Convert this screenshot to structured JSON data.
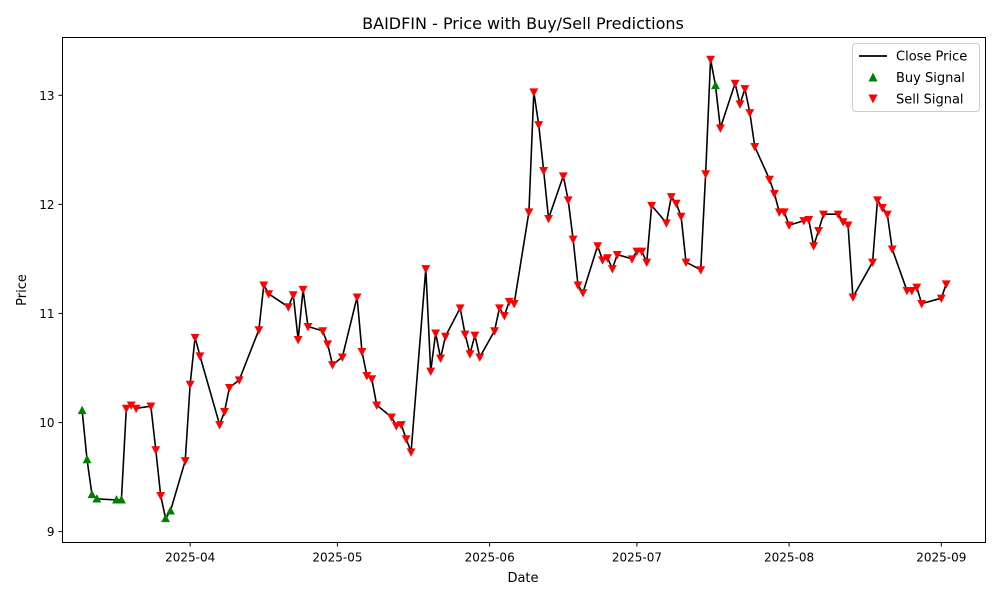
{
  "chart_data": {
    "type": "line",
    "title": "BAIDFIN - Price with Buy/Sell Predictions",
    "xlabel": "Date",
    "ylabel": "Price",
    "xlim": [
      "2025-03-06",
      "2025-09-10"
    ],
    "ylim": [
      8.9,
      13.53
    ],
    "y_ticks": [
      9,
      10,
      11,
      12,
      13
    ],
    "x_ticks": [
      {
        "date": "2025-04-01",
        "label": "2025-04"
      },
      {
        "date": "2025-05-01",
        "label": "2025-05"
      },
      {
        "date": "2025-06-01",
        "label": "2025-06"
      },
      {
        "date": "2025-07-01",
        "label": "2025-07"
      },
      {
        "date": "2025-08-01",
        "label": "2025-08"
      },
      {
        "date": "2025-09-01",
        "label": "2025-09"
      }
    ],
    "grid": false,
    "legend_position": "top-right",
    "legend": [
      "Close Price",
      "Buy Signal",
      "Sell Signal"
    ],
    "colors": {
      "line": "#000000",
      "buy": "#008000",
      "sell": "#ff0000"
    },
    "series": [
      {
        "name": "Close Price",
        "style": "line",
        "points": [
          [
            "2025-03-10",
            10.11
          ],
          [
            "2025-03-11",
            9.66
          ],
          [
            "2025-03-12",
            9.34
          ],
          [
            "2025-03-13",
            9.3
          ],
          [
            "2025-03-17",
            9.29
          ],
          [
            "2025-03-18",
            9.29
          ],
          [
            "2025-03-19",
            10.13
          ],
          [
            "2025-03-20",
            10.16
          ],
          [
            "2025-03-21",
            10.13
          ],
          [
            "2025-03-24",
            10.15
          ],
          [
            "2025-03-25",
            9.75
          ],
          [
            "2025-03-26",
            9.33
          ],
          [
            "2025-03-27",
            9.12
          ],
          [
            "2025-03-28",
            9.19
          ],
          [
            "2025-03-31",
            9.65
          ],
          [
            "2025-04-01",
            10.35
          ],
          [
            "2025-04-02",
            10.78
          ],
          [
            "2025-04-03",
            10.61
          ],
          [
            "2025-04-07",
            9.98
          ],
          [
            "2025-04-08",
            10.1
          ],
          [
            "2025-04-09",
            10.32
          ],
          [
            "2025-04-11",
            10.39
          ],
          [
            "2025-04-15",
            10.85
          ],
          [
            "2025-04-16",
            11.26
          ],
          [
            "2025-04-17",
            11.18
          ],
          [
            "2025-04-21",
            11.06
          ],
          [
            "2025-04-22",
            11.17
          ],
          [
            "2025-04-23",
            10.76
          ],
          [
            "2025-04-24",
            11.22
          ],
          [
            "2025-04-25",
            10.88
          ],
          [
            "2025-04-28",
            10.84
          ],
          [
            "2025-04-29",
            10.72
          ],
          [
            "2025-04-30",
            10.53
          ],
          [
            "2025-05-02",
            10.6
          ],
          [
            "2025-05-05",
            11.15
          ],
          [
            "2025-05-06",
            10.65
          ],
          [
            "2025-05-07",
            10.43
          ],
          [
            "2025-05-08",
            10.4
          ],
          [
            "2025-05-09",
            10.16
          ],
          [
            "2025-05-12",
            10.05
          ],
          [
            "2025-05-13",
            9.97
          ],
          [
            "2025-05-14",
            9.98
          ],
          [
            "2025-05-15",
            9.85
          ],
          [
            "2025-05-16",
            9.73
          ],
          [
            "2025-05-19",
            11.41
          ],
          [
            "2025-05-20",
            10.47
          ],
          [
            "2025-05-21",
            10.82
          ],
          [
            "2025-05-22",
            10.59
          ],
          [
            "2025-05-23",
            10.79
          ],
          [
            "2025-05-26",
            11.05
          ],
          [
            "2025-05-27",
            10.81
          ],
          [
            "2025-05-28",
            10.63
          ],
          [
            "2025-05-29",
            10.8
          ],
          [
            "2025-05-30",
            10.6
          ],
          [
            "2025-06-02",
            10.84
          ],
          [
            "2025-06-03",
            11.05
          ],
          [
            "2025-06-04",
            10.98
          ],
          [
            "2025-06-05",
            11.11
          ],
          [
            "2025-06-06",
            11.09
          ],
          [
            "2025-06-09",
            11.93
          ],
          [
            "2025-06-10",
            13.03
          ],
          [
            "2025-06-11",
            12.73
          ],
          [
            "2025-06-12",
            12.31
          ],
          [
            "2025-06-13",
            11.87
          ],
          [
            "2025-06-16",
            12.26
          ],
          [
            "2025-06-17",
            12.04
          ],
          [
            "2025-06-18",
            11.68
          ],
          [
            "2025-06-19",
            11.26
          ],
          [
            "2025-06-20",
            11.19
          ],
          [
            "2025-06-23",
            11.62
          ],
          [
            "2025-06-24",
            11.49
          ],
          [
            "2025-06-25",
            11.51
          ],
          [
            "2025-06-26",
            11.41
          ],
          [
            "2025-06-27",
            11.54
          ],
          [
            "2025-06-30",
            11.5
          ],
          [
            "2025-07-01",
            11.57
          ],
          [
            "2025-07-02",
            11.57
          ],
          [
            "2025-07-03",
            11.47
          ],
          [
            "2025-07-04",
            11.99
          ],
          [
            "2025-07-07",
            11.83
          ],
          [
            "2025-07-08",
            12.07
          ],
          [
            "2025-07-09",
            12.01
          ],
          [
            "2025-07-10",
            11.89
          ],
          [
            "2025-07-11",
            11.47
          ],
          [
            "2025-07-14",
            11.4
          ],
          [
            "2025-07-15",
            12.28
          ],
          [
            "2025-07-16",
            13.33
          ],
          [
            "2025-07-17",
            13.09
          ],
          [
            "2025-07-18",
            12.7
          ],
          [
            "2025-07-21",
            13.11
          ],
          [
            "2025-07-22",
            12.92
          ],
          [
            "2025-07-23",
            13.06
          ],
          [
            "2025-07-24",
            12.84
          ],
          [
            "2025-07-25",
            12.53
          ],
          [
            "2025-07-28",
            12.23
          ],
          [
            "2025-07-29",
            12.1
          ],
          [
            "2025-07-30",
            11.93
          ],
          [
            "2025-07-31",
            11.93
          ],
          [
            "2025-08-01",
            11.81
          ],
          [
            "2025-08-04",
            11.85
          ],
          [
            "2025-08-05",
            11.86
          ],
          [
            "2025-08-06",
            11.62
          ],
          [
            "2025-08-07",
            11.76
          ],
          [
            "2025-08-08",
            11.91
          ],
          [
            "2025-08-11",
            11.91
          ],
          [
            "2025-08-12",
            11.84
          ],
          [
            "2025-08-13",
            11.81
          ],
          [
            "2025-08-14",
            11.15
          ],
          [
            "2025-08-18",
            11.47
          ],
          [
            "2025-08-19",
            12.04
          ],
          [
            "2025-08-20",
            11.97
          ],
          [
            "2025-08-21",
            11.91
          ],
          [
            "2025-08-22",
            11.59
          ],
          [
            "2025-08-25",
            11.21
          ],
          [
            "2025-08-26",
            11.21
          ],
          [
            "2025-08-27",
            11.24
          ],
          [
            "2025-08-28",
            11.09
          ],
          [
            "2025-09-01",
            11.14
          ],
          [
            "2025-09-02",
            11.27
          ]
        ]
      },
      {
        "name": "Buy Signal",
        "style": "marker-triangle-up",
        "points": [
          [
            "2025-03-10",
            10.11
          ],
          [
            "2025-03-11",
            9.66
          ],
          [
            "2025-03-12",
            9.34
          ],
          [
            "2025-03-13",
            9.3
          ],
          [
            "2025-03-17",
            9.29
          ],
          [
            "2025-03-18",
            9.29
          ],
          [
            "2025-03-27",
            9.12
          ],
          [
            "2025-03-28",
            9.19
          ],
          [
            "2025-07-17",
            13.09
          ]
        ]
      },
      {
        "name": "Sell Signal",
        "style": "marker-triangle-down",
        "points": [
          [
            "2025-03-19",
            10.13
          ],
          [
            "2025-03-20",
            10.16
          ],
          [
            "2025-03-21",
            10.13
          ],
          [
            "2025-03-24",
            10.15
          ],
          [
            "2025-03-25",
            9.75
          ],
          [
            "2025-03-26",
            9.33
          ],
          [
            "2025-03-31",
            9.65
          ],
          [
            "2025-04-01",
            10.35
          ],
          [
            "2025-04-02",
            10.78
          ],
          [
            "2025-04-03",
            10.61
          ],
          [
            "2025-04-07",
            9.98
          ],
          [
            "2025-04-08",
            10.1
          ],
          [
            "2025-04-09",
            10.32
          ],
          [
            "2025-04-11",
            10.39
          ],
          [
            "2025-04-15",
            10.85
          ],
          [
            "2025-04-16",
            11.26
          ],
          [
            "2025-04-17",
            11.18
          ],
          [
            "2025-04-21",
            11.06
          ],
          [
            "2025-04-22",
            11.17
          ],
          [
            "2025-04-23",
            10.76
          ],
          [
            "2025-04-24",
            11.22
          ],
          [
            "2025-04-25",
            10.88
          ],
          [
            "2025-04-28",
            10.84
          ],
          [
            "2025-04-29",
            10.72
          ],
          [
            "2025-04-30",
            10.53
          ],
          [
            "2025-05-02",
            10.6
          ],
          [
            "2025-05-05",
            11.15
          ],
          [
            "2025-05-06",
            10.65
          ],
          [
            "2025-05-07",
            10.43
          ],
          [
            "2025-05-08",
            10.4
          ],
          [
            "2025-05-09",
            10.16
          ],
          [
            "2025-05-12",
            10.05
          ],
          [
            "2025-05-13",
            9.97
          ],
          [
            "2025-05-14",
            9.98
          ],
          [
            "2025-05-15",
            9.85
          ],
          [
            "2025-05-16",
            9.73
          ],
          [
            "2025-05-19",
            11.41
          ],
          [
            "2025-05-20",
            10.47
          ],
          [
            "2025-05-21",
            10.82
          ],
          [
            "2025-05-22",
            10.59
          ],
          [
            "2025-05-23",
            10.79
          ],
          [
            "2025-05-26",
            11.05
          ],
          [
            "2025-05-27",
            10.81
          ],
          [
            "2025-05-28",
            10.63
          ],
          [
            "2025-05-29",
            10.8
          ],
          [
            "2025-05-30",
            10.6
          ],
          [
            "2025-06-02",
            10.84
          ],
          [
            "2025-06-03",
            11.05
          ],
          [
            "2025-06-04",
            10.98
          ],
          [
            "2025-06-05",
            11.11
          ],
          [
            "2025-06-06",
            11.09
          ],
          [
            "2025-06-09",
            11.93
          ],
          [
            "2025-06-10",
            13.03
          ],
          [
            "2025-06-11",
            12.73
          ],
          [
            "2025-06-12",
            12.31
          ],
          [
            "2025-06-13",
            11.87
          ],
          [
            "2025-06-16",
            12.26
          ],
          [
            "2025-06-17",
            12.04
          ],
          [
            "2025-06-18",
            11.68
          ],
          [
            "2025-06-19",
            11.26
          ],
          [
            "2025-06-20",
            11.19
          ],
          [
            "2025-06-23",
            11.62
          ],
          [
            "2025-06-24",
            11.49
          ],
          [
            "2025-06-25",
            11.51
          ],
          [
            "2025-06-26",
            11.41
          ],
          [
            "2025-06-27",
            11.54
          ],
          [
            "2025-06-30",
            11.5
          ],
          [
            "2025-07-01",
            11.57
          ],
          [
            "2025-07-02",
            11.57
          ],
          [
            "2025-07-03",
            11.47
          ],
          [
            "2025-07-04",
            11.99
          ],
          [
            "2025-07-07",
            11.83
          ],
          [
            "2025-07-08",
            12.07
          ],
          [
            "2025-07-09",
            12.01
          ],
          [
            "2025-07-10",
            11.89
          ],
          [
            "2025-07-11",
            11.47
          ],
          [
            "2025-07-14",
            11.4
          ],
          [
            "2025-07-15",
            12.28
          ],
          [
            "2025-07-16",
            13.33
          ],
          [
            "2025-07-18",
            12.7
          ],
          [
            "2025-07-21",
            13.11
          ],
          [
            "2025-07-22",
            12.92
          ],
          [
            "2025-07-23",
            13.06
          ],
          [
            "2025-07-24",
            12.84
          ],
          [
            "2025-07-25",
            12.53
          ],
          [
            "2025-07-28",
            12.23
          ],
          [
            "2025-07-29",
            12.1
          ],
          [
            "2025-07-30",
            11.93
          ],
          [
            "2025-07-31",
            11.93
          ],
          [
            "2025-08-01",
            11.81
          ],
          [
            "2025-08-04",
            11.85
          ],
          [
            "2025-08-05",
            11.86
          ],
          [
            "2025-08-06",
            11.62
          ],
          [
            "2025-08-07",
            11.76
          ],
          [
            "2025-08-08",
            11.91
          ],
          [
            "2025-08-11",
            11.91
          ],
          [
            "2025-08-12",
            11.84
          ],
          [
            "2025-08-13",
            11.81
          ],
          [
            "2025-08-14",
            11.15
          ],
          [
            "2025-08-18",
            11.47
          ],
          [
            "2025-08-19",
            12.04
          ],
          [
            "2025-08-20",
            11.97
          ],
          [
            "2025-08-21",
            11.91
          ],
          [
            "2025-08-22",
            11.59
          ],
          [
            "2025-08-25",
            11.21
          ],
          [
            "2025-08-26",
            11.21
          ],
          [
            "2025-08-27",
            11.24
          ],
          [
            "2025-08-28",
            11.09
          ],
          [
            "2025-09-01",
            11.14
          ],
          [
            "2025-09-02",
            11.27
          ]
        ]
      }
    ]
  }
}
